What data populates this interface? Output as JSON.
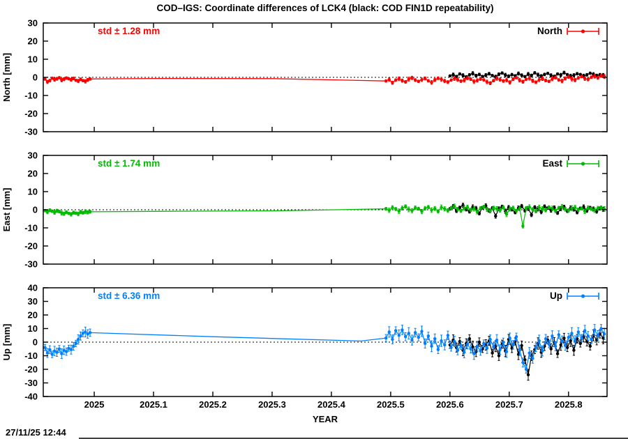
{
  "title": "COD–IGS: Coordinate differences of LCK4 (black: COD FIN1D repeatability)",
  "timestamp": "27/11/25 12:44",
  "colors": {
    "north": "#ff0000",
    "east": "#00bb00",
    "up": "#0080ff",
    "repeatability": "#000000",
    "frame": "#000000",
    "background": "#ffffff"
  },
  "x_axis": {
    "label": "YEAR",
    "lim": [
      2024.914,
      2025.865
    ],
    "ticks": [
      {
        "v": 2025.0,
        "label": "2025"
      },
      {
        "v": 2025.1,
        "label": "2025.1"
      },
      {
        "v": 2025.2,
        "label": "2025.2"
      },
      {
        "v": 2025.3,
        "label": "2025.3"
      },
      {
        "v": 2025.4,
        "label": "2025.4"
      },
      {
        "v": 2025.5,
        "label": "2025.5"
      },
      {
        "v": 2025.6,
        "label": "2025.6"
      },
      {
        "v": 2025.7,
        "label": "2025.7"
      },
      {
        "v": 2025.8,
        "label": "2025.8"
      }
    ]
  },
  "chart_data": [
    {
      "type": "scatter",
      "panel": "North",
      "y_label": "North [mm]",
      "std_label": "std ± 1.28 mm",
      "legend_label": "North",
      "color": "#ff0000",
      "ylim": [
        -30,
        30
      ],
      "grid": false,
      "zero_line": true,
      "y_ticks": [
        {
          "v": 30,
          "label": "30"
        },
        {
          "v": 20,
          "label": "20"
        },
        {
          "v": 10,
          "label": "10"
        },
        {
          "v": 0,
          "label": "0"
        },
        {
          "v": -10,
          "label": "-10"
        },
        {
          "v": -20,
          "label": "-20"
        },
        {
          "v": -30,
          "label": "-30"
        }
      ],
      "series": [
        {
          "name": "COD FIN1D repeatability",
          "color": "#000000",
          "segments": [
            {
              "type": "points",
              "x0": 2025.6,
              "dx": 0.0055,
              "err": 0.8,
              "y": [
                0.8,
                1.5,
                0.4,
                1.9,
                1.1,
                0.2,
                1.4,
                2.2,
                0.9,
                1.6,
                0.5,
                1.2,
                2.0,
                1.0,
                0.3,
                1.7,
                2.4,
                1.3,
                0.6,
                1.5,
                0.9,
                2.1,
                1.2,
                0.4,
                1.8,
                1.0,
                2.5,
                1.4,
                0.7,
                1.6,
                2.2,
                1.1,
                0.5,
                1.9,
                1.3,
                2.6,
                1.5,
                0.8,
                1.2,
                2.0,
                1.6,
                0.9,
                1.4,
                2.3,
                1.7,
                1.0,
                1.5,
                1.2
              ]
            }
          ]
        },
        {
          "name": "North",
          "color": "#ff0000",
          "segments": [
            {
              "type": "points",
              "x0": 2024.917,
              "dx": 0.004,
              "err": 0.8,
              "y": [
                -1.0,
                -2.5,
                -1.8,
                -0.5,
                -1.2,
                -0.8,
                -0.2,
                -1.5,
                -1.0,
                -0.4,
                -0.8,
                -1.3,
                -0.6,
                -1.6,
                -2.0,
                -1.1,
                -1.8,
                -2.2,
                -1.4,
                -0.9
              ]
            },
            {
              "type": "line",
              "pts": [
                [
                  2024.993,
                  -0.9
                ],
                [
                  2025.1,
                  -0.6
                ],
                [
                  2025.3,
                  -0.7
                ],
                [
                  2025.492,
                  -2.0
                ]
              ]
            },
            {
              "type": "points",
              "x0": 2025.492,
              "dx": 0.0055,
              "err": 0.9,
              "y": [
                -2.0,
                -1.2,
                -3.0,
                -1.5,
                -0.8,
                -1.8,
                -2.5,
                -1.0,
                -0.3,
                -1.5,
                -2.2,
                -1.3,
                -0.6,
                -1.9,
                -2.8,
                -1.4,
                -0.5,
                -1.1,
                -2.0,
                -2.6,
                -1.5,
                -0.7,
                -1.3,
                -2.1,
                -1.6,
                -0.4,
                -1.0,
                -2.3,
                -1.7,
                -0.9,
                -1.4,
                -2.5,
                -3.2,
                -1.8,
                -0.6,
                -1.2,
                -2.0,
                -1.5,
                -2.8,
                -1.0,
                -0.2,
                -1.6,
                -2.4,
                -1.1,
                -0.5,
                -1.9,
                -2.7,
                -1.3,
                -0.8,
                -1.7,
                -2.2,
                -0.9,
                -0.1,
                -1.4,
                -2.0,
                -0.6,
                0.2,
                -0.9,
                -1.5,
                -0.3,
                0.4,
                -0.7,
                -1.1,
                0.1,
                0.6,
                -0.2,
                0.8,
                0.5
              ]
            }
          ]
        }
      ]
    },
    {
      "type": "scatter",
      "panel": "East",
      "y_label": "East [mm]",
      "std_label": "std ± 1.74 mm",
      "legend_label": "East",
      "color": "#00bb00",
      "ylim": [
        -30,
        30
      ],
      "grid": false,
      "zero_line": true,
      "y_ticks": [
        {
          "v": 30,
          "label": "30"
        },
        {
          "v": 20,
          "label": "20"
        },
        {
          "v": 10,
          "label": "10"
        },
        {
          "v": 0,
          "label": "0"
        },
        {
          "v": -10,
          "label": "-10"
        },
        {
          "v": -20,
          "label": "-20"
        },
        {
          "v": -30,
          "label": "-30"
        }
      ],
      "series": [
        {
          "name": "COD FIN1D repeatability",
          "color": "#000000",
          "segments": [
            {
              "type": "points",
              "x0": 2025.6,
              "dx": 0.0055,
              "err": 1.0,
              "y": [
                0.5,
                1.8,
                -0.6,
                1.2,
                2.5,
                0.3,
                -1.0,
                1.5,
                0.8,
                -2.0,
                1.1,
                2.2,
                -0.4,
                0.9,
                -3.5,
                0.6,
                1.7,
                -0.8,
                1.3,
                0.2,
                -1.5,
                1.0,
                2.0,
                -0.5,
                0.7,
                -2.8,
                1.4,
                0.5,
                -1.2,
                1.8,
                0.9,
                -0.3,
                1.2,
                -1.8,
                0.6,
                1.5,
                -0.7,
                1.0,
                0.3,
                -1.4,
                0.8,
                1.6,
                -0.5,
                1.1,
                0.4,
                -0.9,
                0.7,
                0.2
              ]
            }
          ]
        },
        {
          "name": "East",
          "color": "#00bb00",
          "segments": [
            {
              "type": "points",
              "x0": 2024.917,
              "dx": 0.004,
              "err": 0.9,
              "y": [
                -0.5,
                -1.2,
                -0.3,
                -0.8,
                -1.5,
                -0.6,
                -1.0,
                -1.8,
                -2.2,
                -1.4,
                -2.0,
                -2.5,
                -1.6,
                -1.9,
                -2.3,
                -1.2,
                -1.7,
                -1.0,
                -1.4,
                -1.1
              ]
            },
            {
              "type": "line",
              "pts": [
                [
                  2024.993,
                  -1.1
                ],
                [
                  2025.1,
                  -0.9
                ],
                [
                  2025.3,
                  -0.6
                ],
                [
                  2025.492,
                  0.5
                ]
              ]
            },
            {
              "type": "points",
              "x0": 2025.492,
              "dx": 0.0055,
              "err": 1.1,
              "y": [
                0.5,
                -0.3,
                1.2,
                0.4,
                -0.8,
                0.9,
                1.8,
                0.2,
                -0.5,
                1.1,
                0.6,
                -1.0,
                0.8,
                1.5,
                -0.2,
                0.7,
                -0.9,
                1.3,
                0.5,
                -0.4,
                1.0,
                1.9,
                0.3,
                -0.6,
                0.9,
                1.4,
                -0.1,
                0.6,
                -1.2,
                0.8,
                1.6,
                0.2,
                -0.7,
                1.1,
                0.5,
                -0.3,
                1.3,
                -2.5,
                0.4,
                1.0,
                -0.5,
                0.7,
                -9.0,
                0.9,
                1.5,
                0.1,
                -0.8,
                1.2,
                0.6,
                -0.2,
                1.4,
                0.8,
                -0.6,
                1.0,
                1.7,
                0.3,
                -0.4,
                0.9,
                1.3,
                0.0,
                0.7,
                -0.9,
                1.1,
                0.5,
                -0.2,
                0.8,
                1.2,
                0.4
              ]
            }
          ]
        }
      ]
    },
    {
      "type": "scatter",
      "panel": "Up",
      "y_label": "Up [mm]",
      "std_label": "std ± 6.36 mm",
      "legend_label": "Up",
      "color": "#0080ff",
      "ylim": [
        -40,
        40
      ],
      "grid": false,
      "zero_line": true,
      "y_ticks": [
        {
          "v": 40,
          "label": "40"
        },
        {
          "v": 30,
          "label": "30"
        },
        {
          "v": 20,
          "label": "20"
        },
        {
          "v": 10,
          "label": "10"
        },
        {
          "v": 0,
          "label": "0"
        },
        {
          "v": -10,
          "label": "-10"
        },
        {
          "v": -20,
          "label": "-20"
        },
        {
          "v": -30,
          "label": "-30"
        },
        {
          "v": -40,
          "label": "-40"
        }
      ],
      "series": [
        {
          "name": "COD FIN1D repeatability",
          "color": "#000000",
          "segments": [
            {
              "type": "points",
              "x0": 2025.6,
              "dx": 0.0055,
              "err": 3.5,
              "y": [
                -2.0,
                1.5,
                -4.0,
                0.5,
                -6.0,
                -1.0,
                2.5,
                -3.5,
                -7.0,
                0.0,
                -5.0,
                -2.0,
                1.0,
                -8.0,
                -3.0,
                -10.0,
                -1.5,
                -6.5,
                2.0,
                -4.5,
                0.5,
                -9.0,
                -2.5,
                -13.0,
                -24.0,
                -10.0,
                -5.5,
                -1.0,
                -7.5,
                -3.0,
                1.5,
                -5.0,
                0.0,
                -8.5,
                -2.0,
                3.0,
                -4.0,
                1.0,
                -6.0,
                2.5,
                -1.0,
                4.0,
                0.5,
                -3.0,
                5.0,
                1.5,
                6.0,
                3.0
              ]
            }
          ]
        },
        {
          "name": "Up",
          "color": "#0080ff",
          "segments": [
            {
              "type": "points",
              "x0": 2024.917,
              "dx": 0.004,
              "err": 3.0,
              "y": [
                -4.0,
                -8.0,
                -5.5,
                -9.0,
                -6.5,
                -7.5,
                -5.0,
                -8.5,
                -6.0,
                -7.0,
                -4.5,
                -5.5,
                -3.0,
                -1.0,
                2.0,
                4.5,
                6.5,
                7.5,
                6.0,
                7.0
              ]
            },
            {
              "type": "line",
              "pts": [
                [
                  2024.993,
                  7.0
                ],
                [
                  2025.2,
                  4.0
                ],
                [
                  2025.45,
                  0.8
                ],
                [
                  2025.492,
                  3.0
                ]
              ]
            },
            {
              "type": "points",
              "x0": 2025.492,
              "dx": 0.0055,
              "err": 3.5,
              "y": [
                3.0,
                7.5,
                2.0,
                8.5,
                5.0,
                9.0,
                4.0,
                6.5,
                1.5,
                7.0,
                3.5,
                8.0,
                -1.0,
                4.5,
                -3.0,
                2.5,
                -5.5,
                1.0,
                -2.0,
                5.0,
                -4.0,
                0.5,
                -6.0,
                -2.5,
                -7.5,
                -1.5,
                -5.0,
                -8.5,
                -3.0,
                -6.5,
                -1.0,
                -4.5,
                2.0,
                -3.5,
                1.5,
                -5.5,
                0.0,
                -7.0,
                3.0,
                -2.0,
                4.0,
                -6.0,
                -15.0,
                -20.0,
                -8.0,
                -12.0,
                -4.0,
                1.0,
                -6.5,
                2.5,
                -1.5,
                4.5,
                -3.0,
                5.5,
                0.5,
                -2.5,
                3.5,
                6.5,
                1.0,
                7.5,
                3.0,
                8.5,
                4.5,
                2.0,
                9.0,
                5.0,
                10.0,
                6.0
              ]
            }
          ]
        }
      ]
    }
  ]
}
